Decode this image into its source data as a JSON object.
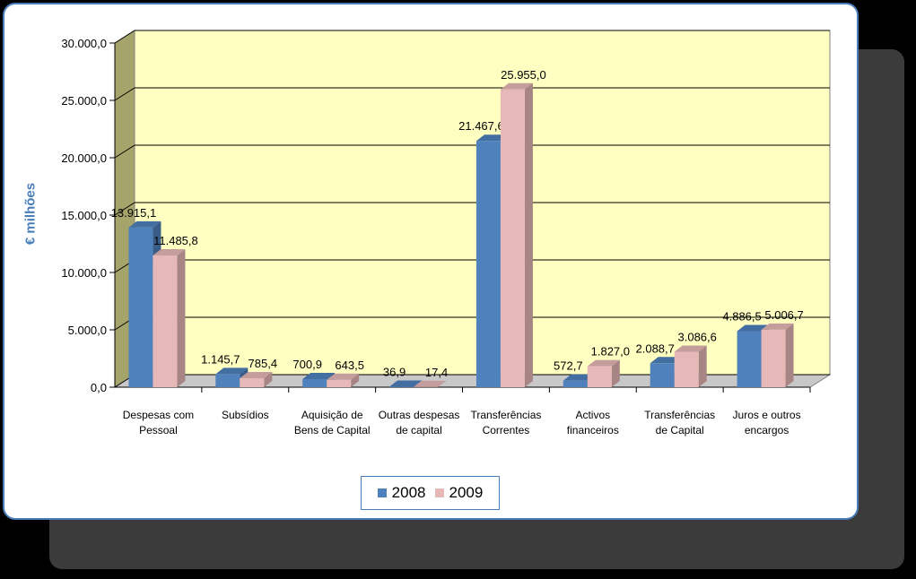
{
  "chart_data": {
    "type": "bar3d",
    "y_axis_label": "€ milhões",
    "categories": [
      "Despesas com Pessoal",
      "Subsídios",
      "Aquisição de Bens de Capital",
      "Outras despesas de capital",
      "Transferências Correntes",
      "Activos financeiros",
      "Transferências de Capital",
      "Juros e outros encargos"
    ],
    "series": [
      {
        "name": "2008",
        "color": "#4f81bd",
        "values": [
          13915.1,
          1145.7,
          700.9,
          36.9,
          21467.6,
          572.7,
          2088.7,
          4886.5
        ],
        "value_labels": [
          "13.915,1",
          "1.145,7",
          "700,9",
          "36,9",
          "21.467,6",
          "572,7",
          "2.088,7",
          "4.886,5"
        ]
      },
      {
        "name": "2009",
        "color": "#e6b9b8",
        "values": [
          11485.8,
          785.4,
          643.5,
          17.4,
          25955.0,
          1827.0,
          3086.6,
          5006.7
        ],
        "value_labels": [
          "11.485,8",
          "785,4",
          "643,5",
          "17,4",
          "25.955,0",
          "1.827,0",
          "3.086,6",
          "5.006,7"
        ]
      }
    ],
    "ylim": [
      0,
      30000
    ],
    "yticks": [
      {
        "value": 0,
        "label": "0,0"
      },
      {
        "value": 5000,
        "label": "5.000,0"
      },
      {
        "value": 10000,
        "label": "10.000,0"
      },
      {
        "value": 15000,
        "label": "15.000,0"
      },
      {
        "value": 20000,
        "label": "20.000,0"
      },
      {
        "value": 25000,
        "label": "25.000,0"
      },
      {
        "value": 30000,
        "label": "30.000,0"
      }
    ],
    "grid": true,
    "legend": "bottom"
  }
}
